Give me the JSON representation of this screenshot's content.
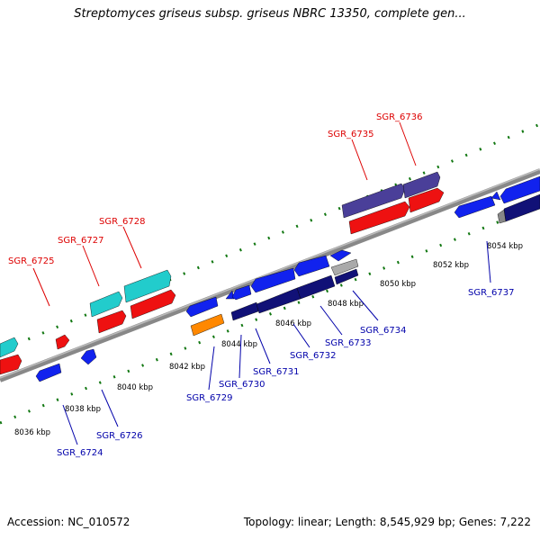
{
  "title": "Streptomyces griseus subsp. griseus NBRC 13350, complete gen...",
  "footer": {
    "accession": "Accession: NC_010572",
    "summary": "Topology: linear; Length: 8,545,929 bp; Genes: 7,222"
  },
  "colors": {
    "forward_label": "#dd0000",
    "reverse_label": "#0000aa",
    "red_gene": "#ee1111",
    "cyan_gene": "#22cccc",
    "blue_gene": "#1122ee",
    "navy_gene": "#111177",
    "slate_gene": "#4a3f99",
    "orange_gene": "#ff8800",
    "gray_gene": "#888888",
    "tick": "#117711",
    "axis": "#888888"
  },
  "kbp_labels": [
    "8036 kbp",
    "8038 kbp",
    "8040 kbp",
    "8042 kbp",
    "8044 kbp",
    "8046 kbp",
    "8048 kbp",
    "8050 kbp",
    "8052 kbp",
    "8054 kbp"
  ],
  "forward_genes": [
    "SGR_6725",
    "SGR_6727",
    "SGR_6728",
    "SGR_6735",
    "SGR_6736"
  ],
  "reverse_genes": [
    "SGR_6724",
    "SGR_6726",
    "SGR_6729",
    "SGR_6730",
    "SGR_6731",
    "SGR_6732",
    "SGR_6733",
    "SGR_6734",
    "SGR_6737"
  ]
}
